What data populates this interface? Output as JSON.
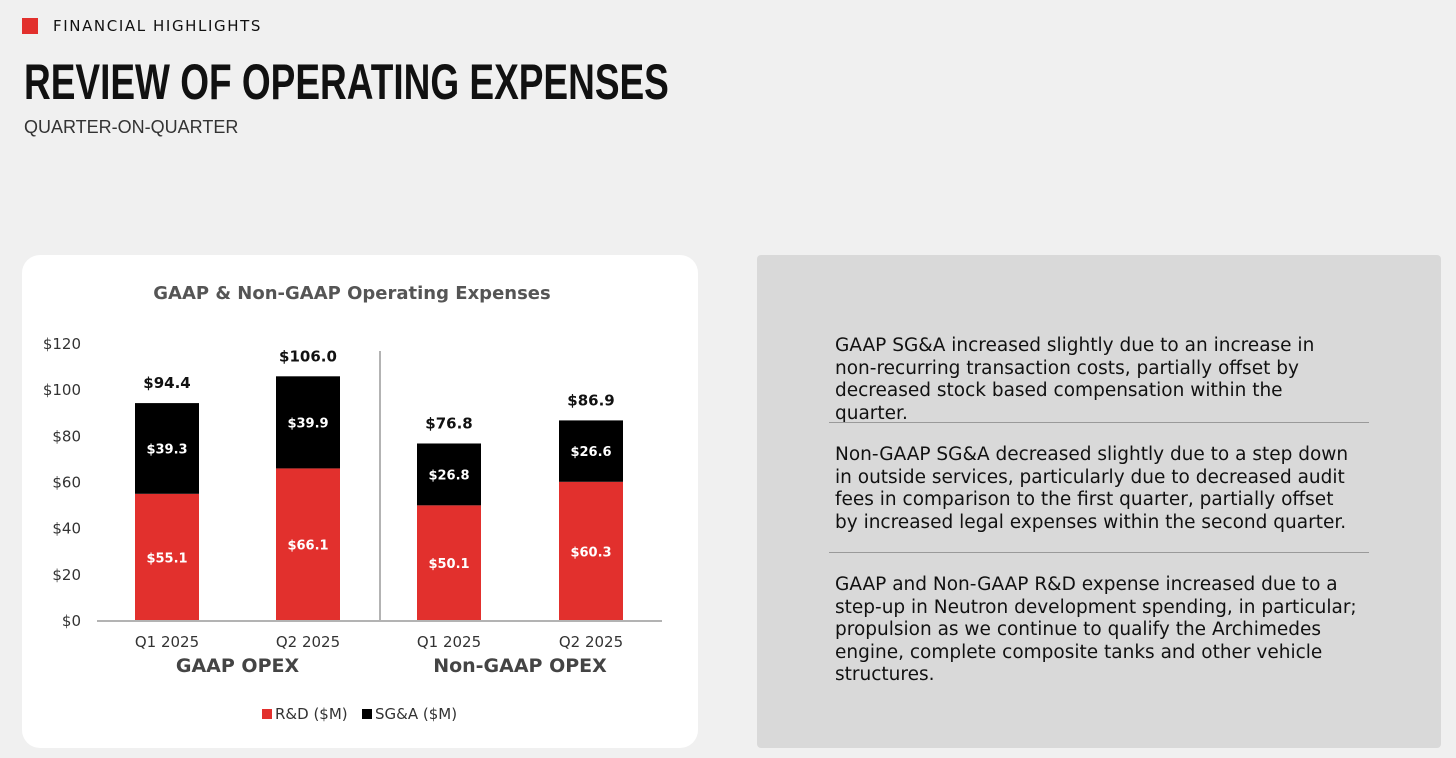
{
  "header": {
    "section_label": "FINANCIAL HIGHLIGHTS",
    "title": "REVIEW OF OPERATING EXPENSES",
    "subtitle": "QUARTER-ON-QUARTER",
    "accent_color": "#e2302d"
  },
  "chart_data": {
    "type": "bar",
    "stacked": true,
    "title": "GAAP & Non-GAAP Operating Expenses",
    "categories": [
      "Q1 2025",
      "Q2 2025",
      "Q1 2025",
      "Q2 2025"
    ],
    "groups": [
      {
        "label": "GAAP OPEX",
        "categories": [
          "Q1 2025",
          "Q2 2025"
        ]
      },
      {
        "label": "Non-GAAP OPEX",
        "categories": [
          "Q1 2025",
          "Q2 2025"
        ]
      }
    ],
    "series": [
      {
        "name": "R&D ($M)",
        "color": "#e2302d",
        "values": [
          55.1,
          66.1,
          50.1,
          60.3
        ],
        "labels": [
          "$55.1",
          "$66.1",
          "$50.1",
          "$60.3"
        ]
      },
      {
        "name": "SG&A ($M)",
        "color": "#000000",
        "values": [
          39.3,
          39.9,
          26.8,
          26.6
        ],
        "labels": [
          "$39.3",
          "$39.9",
          "$26.8",
          "$26.6"
        ]
      }
    ],
    "totals": [
      94.4,
      106.0,
      76.8,
      86.9
    ],
    "total_labels": [
      "$94.4",
      "$106.0",
      "$76.8",
      "$86.9"
    ],
    "yticks": [
      "$0",
      "$20",
      "$40",
      "$60",
      "$80",
      "$100",
      "$120"
    ],
    "ylim": [
      0,
      120
    ],
    "grid": false,
    "legend_position": "bottom"
  },
  "notes": [
    "GAAP SG&A increased slightly due to an increase in non-recurring transaction costs, partially offset by decreased stock based compensation within the quarter.",
    "Non-GAAP SG&A decreased slightly due to a step down in outside services, particularly due to decreased audit fees in comparison to the first quarter, partially offset by increased legal expenses within the second quarter.",
    "GAAP and Non-GAAP R&D expense increased due to a step-up in Neutron development spending, in particular; propulsion as we continue to qualify the Archimedes engine, complete composite tanks and other vehicle structures."
  ]
}
